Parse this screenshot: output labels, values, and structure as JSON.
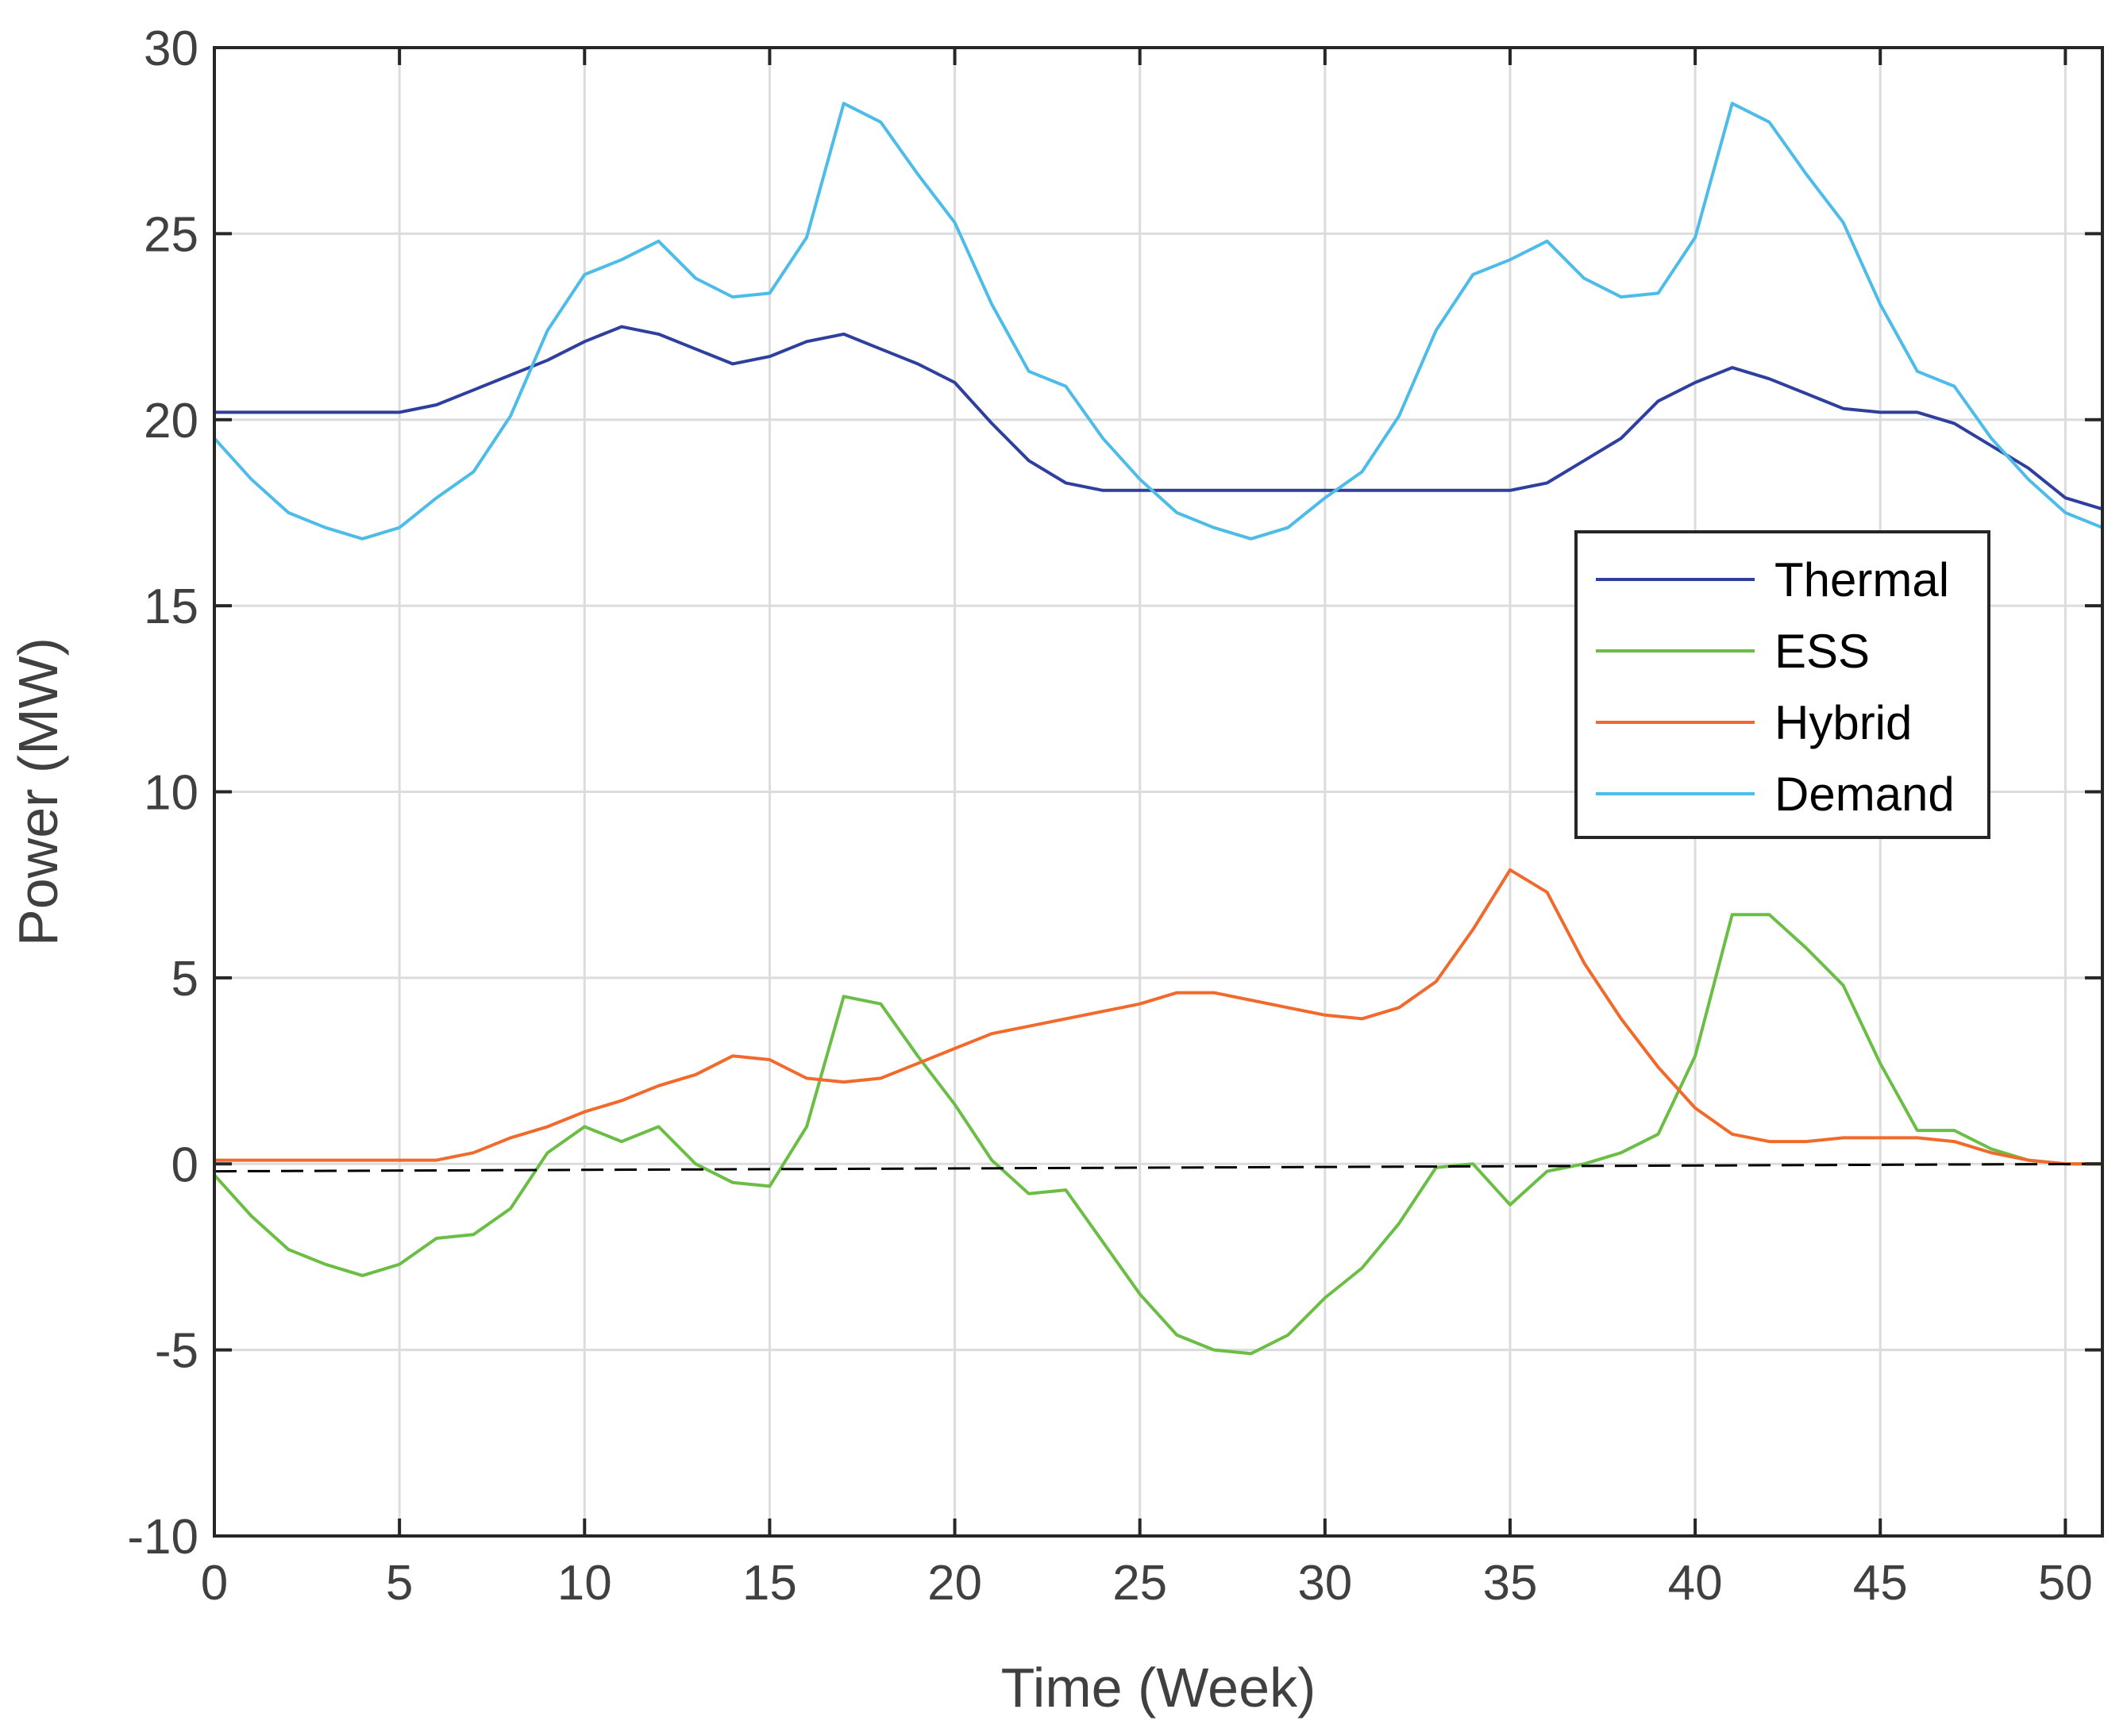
{
  "chart_data": {
    "type": "line",
    "title": "",
    "xlabel": "Time (Week)",
    "ylabel": "Power (MW)",
    "xlim": [
      0,
      51
    ],
    "ylim": [
      -10,
      30
    ],
    "xticks": [
      0,
      5,
      10,
      15,
      20,
      25,
      30,
      35,
      40,
      45,
      50
    ],
    "yticks": [
      -10,
      -5,
      0,
      5,
      10,
      15,
      20,
      25,
      30
    ],
    "grid": true,
    "legend_position": "center-right",
    "x": [
      0,
      1,
      2,
      3,
      4,
      5,
      6,
      7,
      8,
      9,
      10,
      11,
      12,
      13,
      14,
      15,
      16,
      17,
      18,
      19,
      20,
      21,
      22,
      23,
      24,
      25,
      26,
      27,
      28,
      29,
      30,
      31,
      32,
      33,
      34,
      35,
      36,
      37,
      38,
      39,
      40,
      41,
      42,
      43,
      44,
      45,
      46,
      47,
      48,
      49,
      50,
      51
    ],
    "series": [
      {
        "name": "Thermal",
        "color": "#2E3F9E",
        "values": [
          20.2,
          20.2,
          20.2,
          20.2,
          20.2,
          20.2,
          20.4,
          20.8,
          21.2,
          21.6,
          22.1,
          22.5,
          22.3,
          21.9,
          21.5,
          21.7,
          22.1,
          22.3,
          21.9,
          21.5,
          21.0,
          19.9,
          18.9,
          18.3,
          18.1,
          18.1,
          18.1,
          18.1,
          18.1,
          18.1,
          18.1,
          18.1,
          18.1,
          18.1,
          18.1,
          18.1,
          18.3,
          18.9,
          19.5,
          20.5,
          21.0,
          21.4,
          21.1,
          20.7,
          20.3,
          20.2,
          20.2,
          19.9,
          19.3,
          18.7,
          17.9,
          17.6
        ]
      },
      {
        "name": "ESS",
        "color": "#6BBE45",
        "values": [
          -0.3,
          -1.4,
          -2.3,
          -2.7,
          -3.0,
          -2.7,
          -2.0,
          -1.9,
          -1.2,
          0.3,
          1.0,
          0.6,
          1.0,
          0.0,
          -0.5,
          -0.6,
          1.0,
          4.5,
          4.3,
          2.9,
          1.6,
          0.1,
          -0.8,
          -0.7,
          -2.1,
          -3.5,
          -4.6,
          -5.0,
          -5.1,
          -4.6,
          -3.6,
          -2.8,
          -1.6,
          -0.1,
          0.0,
          -1.1,
          -0.2,
          0.0,
          0.3,
          0.8,
          2.9,
          6.7,
          6.7,
          5.8,
          4.8,
          2.7,
          0.9,
          0.9,
          0.4,
          0.1,
          0.0,
          0.0
        ]
      },
      {
        "name": "Hybrid",
        "color": "#F26A2B",
        "values": [
          0.1,
          0.1,
          0.1,
          0.1,
          0.1,
          0.1,
          0.1,
          0.3,
          0.7,
          1.0,
          1.4,
          1.7,
          2.1,
          2.4,
          2.9,
          2.8,
          2.3,
          2.2,
          2.3,
          2.7,
          3.1,
          3.5,
          3.7,
          3.9,
          4.1,
          4.3,
          4.6,
          4.6,
          4.4,
          4.2,
          4.0,
          3.9,
          4.2,
          4.9,
          6.3,
          7.9,
          7.3,
          5.4,
          3.9,
          2.6,
          1.5,
          0.8,
          0.6,
          0.6,
          0.7,
          0.7,
          0.7,
          0.6,
          0.3,
          0.1,
          0.0,
          0.0
        ]
      },
      {
        "name": "Demand",
        "color": "#4DBCE9",
        "values": [
          19.5,
          18.4,
          17.5,
          17.1,
          16.8,
          17.1,
          17.9,
          18.6,
          20.1,
          22.4,
          23.9,
          24.3,
          24.8,
          23.8,
          23.3,
          23.4,
          24.9,
          28.5,
          28.0,
          26.6,
          25.3,
          23.1,
          21.3,
          20.9,
          19.5,
          18.4,
          17.5,
          17.1,
          16.8,
          17.1,
          17.9,
          18.6,
          20.1,
          22.4,
          23.9,
          24.3,
          24.8,
          23.8,
          23.3,
          23.4,
          24.9,
          28.5,
          28.0,
          26.6,
          25.3,
          23.1,
          21.3,
          20.9,
          19.5,
          18.4,
          17.5,
          17.1
        ]
      },
      {
        "name": "baseline",
        "color": "#000000",
        "dashed": true,
        "show_in_legend": false,
        "x": [
          0,
          51
        ],
        "values": [
          -0.2,
          0.0
        ]
      }
    ]
  }
}
